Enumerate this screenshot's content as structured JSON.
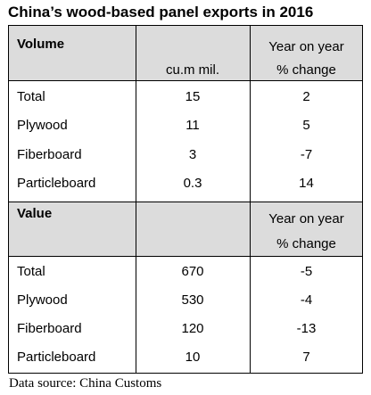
{
  "title": "China’s wood-based panel exports in 2016",
  "volume_section": {
    "label": "Volume",
    "unit": "cu.m mil.",
    "change_label_line1": "Year on year",
    "change_label_line2": "% change",
    "rows": [
      {
        "name": "Total",
        "value": "15",
        "change": "2"
      },
      {
        "name": "Plywood",
        "value": "11",
        "change": "5"
      },
      {
        "name": "Fiberboard",
        "value": "3",
        "change": "-7"
      },
      {
        "name": "Particleboard",
        "value": "0.3",
        "change": "14"
      }
    ]
  },
  "value_section": {
    "label": "Value",
    "change_label_line1": "Year on year",
    "change_label_line2": "% change",
    "rows": [
      {
        "name": "Total",
        "value": "670",
        "change": "-5"
      },
      {
        "name": "Plywood",
        "value": "530",
        "change": "-4"
      },
      {
        "name": "Fiberboard",
        "value": "120",
        "change": "-13"
      },
      {
        "name": "Particleboard",
        "value": "10",
        "change": "7"
      }
    ]
  },
  "source": "Data source: China Customs",
  "colors": {
    "header_bg": "#dcdcdc",
    "border": "#000000"
  }
}
